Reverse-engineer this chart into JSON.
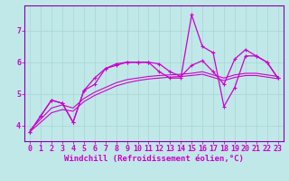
{
  "background_color": "#c0e8e8",
  "grid_color": "#a8d4d4",
  "line_color": "#cc00cc",
  "spine_color": "#8800aa",
  "xlabel": "Windchill (Refroidissement éolien,°C)",
  "xlabel_fontsize": 6.5,
  "tick_fontsize": 6,
  "ylim": [
    3.5,
    7.8
  ],
  "xlim": [
    -0.5,
    23.5
  ],
  "yticks": [
    4,
    5,
    6,
    7
  ],
  "xticks": [
    0,
    1,
    2,
    3,
    4,
    5,
    6,
    7,
    8,
    9,
    10,
    11,
    12,
    13,
    14,
    15,
    16,
    17,
    18,
    19,
    20,
    21,
    22,
    23
  ],
  "curve_spiky_x": [
    0,
    1,
    2,
    3,
    4,
    5,
    6,
    7,
    8,
    9,
    10,
    11,
    12,
    13,
    14,
    15,
    16,
    17,
    18,
    19,
    20,
    21,
    22,
    23
  ],
  "curve_spiky_y": [
    3.8,
    4.3,
    4.8,
    4.7,
    4.1,
    5.1,
    5.3,
    5.8,
    5.9,
    6.0,
    6.0,
    6.0,
    5.7,
    5.5,
    5.5,
    7.5,
    6.5,
    6.3,
    4.6,
    5.2,
    6.2,
    6.2,
    6.0,
    5.5
  ],
  "curve_smooth_x": [
    0,
    1,
    2,
    3,
    4,
    5,
    6,
    7,
    8,
    9,
    10,
    11,
    12,
    13,
    14,
    15,
    16,
    17,
    18,
    19,
    20,
    21,
    22,
    23
  ],
  "curve_smooth_y": [
    3.8,
    4.3,
    4.8,
    4.7,
    4.1,
    5.1,
    5.5,
    5.8,
    5.95,
    6.0,
    6.0,
    6.0,
    5.95,
    5.7,
    5.55,
    5.9,
    6.05,
    5.7,
    5.3,
    6.1,
    6.4,
    6.2,
    6.0,
    5.5
  ],
  "curve_reg1_x": [
    0,
    1,
    2,
    3,
    4,
    5,
    6,
    7,
    8,
    9,
    10,
    11,
    12,
    13,
    14,
    15,
    16,
    17,
    18,
    19,
    20,
    21,
    22,
    23
  ],
  "curve_reg1_y": [
    3.85,
    4.2,
    4.55,
    4.65,
    4.55,
    4.85,
    5.05,
    5.2,
    5.35,
    5.45,
    5.5,
    5.55,
    5.58,
    5.6,
    5.62,
    5.65,
    5.7,
    5.6,
    5.5,
    5.6,
    5.65,
    5.65,
    5.6,
    5.55
  ],
  "curve_reg2_x": [
    0,
    1,
    2,
    3,
    4,
    5,
    6,
    7,
    8,
    9,
    10,
    11,
    12,
    13,
    14,
    15,
    16,
    17,
    18,
    19,
    20,
    21,
    22,
    23
  ],
  "curve_reg2_y": [
    3.8,
    4.1,
    4.4,
    4.5,
    4.45,
    4.75,
    4.95,
    5.1,
    5.25,
    5.35,
    5.42,
    5.47,
    5.5,
    5.53,
    5.55,
    5.58,
    5.62,
    5.52,
    5.42,
    5.52,
    5.58,
    5.58,
    5.53,
    5.48
  ]
}
